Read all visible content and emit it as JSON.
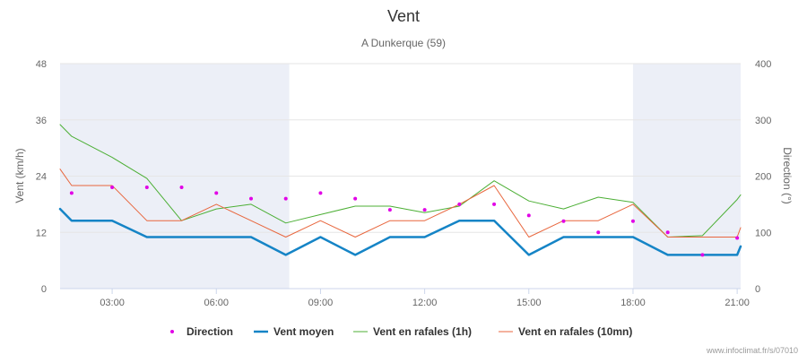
{
  "chart_data": {
    "type": "line",
    "title": "Vent",
    "subtitle": "A Dunkerque (59)",
    "ylabel": "Vent (km/h)",
    "y2label": "Direction (°)",
    "ylim": [
      0,
      48
    ],
    "y2lim": [
      0,
      400
    ],
    "yticks": [
      0,
      12,
      24,
      36,
      48
    ],
    "y2ticks": [
      0,
      100,
      200,
      300,
      400
    ],
    "xlim": [
      1.5,
      21.1
    ],
    "xticks": [
      {
        "x": 3,
        "label": "03:00"
      },
      {
        "x": 6,
        "label": "06:00"
      },
      {
        "x": 9,
        "label": "09:00"
      },
      {
        "x": 12,
        "label": "12:00"
      },
      {
        "x": 15,
        "label": "15:00"
      },
      {
        "x": 18,
        "label": "18:00"
      },
      {
        "x": 21,
        "label": "21:00"
      }
    ],
    "night_bands": [
      [
        1.5,
        8.1
      ],
      [
        18,
        21.1
      ]
    ],
    "night_color": "#eceff7",
    "legend_position": "bottom-center",
    "series": [
      {
        "name": "Direction",
        "kind": "scatter",
        "axis": "right",
        "color": "#e100e6",
        "x": [
          1.833,
          3,
          4,
          5,
          6,
          7,
          8,
          9,
          10,
          11,
          12,
          13,
          14,
          15,
          16,
          17,
          18,
          19,
          20,
          21
        ],
        "values": [
          170,
          180,
          180,
          180,
          170,
          160,
          160,
          170,
          160,
          140,
          140,
          150,
          150,
          130,
          120,
          100,
          120,
          100,
          60,
          90
        ]
      },
      {
        "name": "Vent moyen",
        "kind": "line",
        "axis": "left",
        "color": "#1584c6",
        "width": 2.5,
        "x": [
          1.5,
          1.833,
          3,
          4,
          5,
          6,
          7,
          8,
          9,
          10,
          11,
          12,
          13,
          14,
          15,
          16,
          17,
          18,
          19,
          20,
          21,
          21.1
        ],
        "values": [
          17,
          14.5,
          14.5,
          11,
          11,
          11,
          11,
          7.2,
          11,
          7.2,
          11,
          11,
          14.5,
          14.5,
          7.2,
          11,
          11,
          11,
          7.2,
          7.2,
          7.2,
          9
        ]
      },
      {
        "name": "Vent en rafales (1h)",
        "kind": "line",
        "axis": "left",
        "color": "#4caf35",
        "width": 1,
        "x": [
          1.5,
          1.833,
          3,
          4,
          5,
          6,
          7,
          8,
          9,
          10,
          11,
          12,
          13,
          14,
          15,
          16,
          17,
          18,
          19,
          20,
          21,
          21.1
        ],
        "values": [
          35,
          32.5,
          28,
          23.5,
          14.5,
          17,
          18,
          14,
          15.8,
          17.6,
          17.6,
          16.2,
          17.6,
          23,
          18.7,
          17,
          19.5,
          18.4,
          11,
          11.3,
          19,
          20
        ]
      },
      {
        "name": "Vent en rafales (10mn)",
        "kind": "line",
        "axis": "left",
        "color": "#e8663d",
        "width": 1,
        "x": [
          1.5,
          1.833,
          3,
          4,
          5,
          6,
          7,
          8,
          9,
          10,
          11,
          12,
          13,
          14,
          15,
          16,
          17,
          18,
          19,
          20,
          21,
          21.1
        ],
        "values": [
          25.5,
          22,
          22,
          14.5,
          14.5,
          18,
          14.5,
          11,
          14.5,
          11,
          14.5,
          14.5,
          18,
          22,
          11,
          14.5,
          14.5,
          18,
          11,
          11,
          11,
          13
        ]
      }
    ]
  },
  "credits": "www.infoclimat.fr/s/07010"
}
